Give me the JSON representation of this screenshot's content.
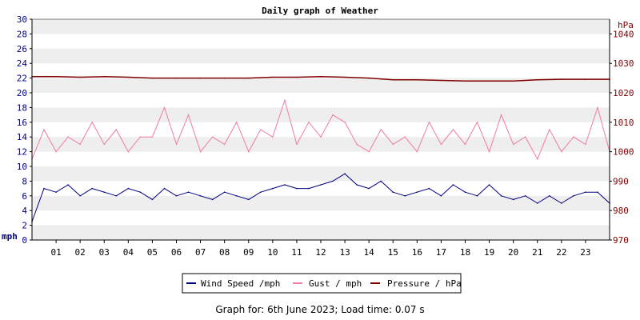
{
  "chart_data": {
    "type": "line",
    "title": "Daily graph of Weather",
    "ylabel_left": "mph",
    "ylabel_right": "hPa",
    "ylim_left": [
      0,
      30
    ],
    "yticks_left": [
      0,
      2,
      4,
      6,
      8,
      10,
      12,
      14,
      16,
      18,
      20,
      22,
      24,
      26,
      28,
      30
    ],
    "ylim_right": [
      970,
      1045
    ],
    "yticks_right": [
      970,
      980,
      990,
      1000,
      1010,
      1020,
      1030,
      1040
    ],
    "xlim": [
      0,
      24
    ],
    "x_tick_labels": [
      "01",
      "02",
      "03",
      "04",
      "05",
      "06",
      "07",
      "08",
      "09",
      "10",
      "11",
      "12",
      "13",
      "14",
      "15",
      "16",
      "17",
      "18",
      "19",
      "20",
      "21",
      "22",
      "23"
    ],
    "grid": "horizontal bands",
    "legend_position": "bottom",
    "colors": {
      "wind": "#000080",
      "gust": "#f07ba4",
      "pressure": "#800000",
      "left_axis_text": "#000080",
      "right_axis_text": "#800000",
      "band": "#eeeeee"
    },
    "series": [
      {
        "name": "Wind Speed /mph",
        "axis": "left",
        "color": "#000080",
        "x": [
          0.0,
          0.5,
          1.0,
          1.5,
          2.0,
          2.5,
          3.0,
          3.5,
          4.0,
          4.5,
          5.0,
          5.5,
          6.0,
          6.5,
          7.0,
          7.5,
          8.0,
          8.5,
          9.0,
          9.5,
          10.0,
          10.5,
          11.0,
          11.5,
          12.0,
          12.5,
          13.0,
          13.5,
          14.0,
          14.5,
          15.0,
          15.5,
          16.0,
          16.5,
          17.0,
          17.5,
          18.0,
          18.5,
          19.0,
          19.5,
          20.0,
          20.5,
          21.0,
          21.5,
          22.0,
          22.5,
          23.0,
          23.5,
          24.0
        ],
        "values": [
          2.5,
          7.0,
          6.5,
          7.5,
          6.0,
          7.0,
          6.5,
          6.0,
          7.0,
          6.5,
          5.5,
          7.0,
          6.0,
          6.5,
          6.0,
          5.5,
          6.5,
          6.0,
          5.5,
          6.5,
          7.0,
          7.5,
          7.0,
          7.0,
          7.5,
          8.0,
          9.0,
          7.5,
          7.0,
          8.0,
          6.5,
          6.0,
          6.5,
          7.0,
          6.0,
          7.5,
          6.5,
          6.0,
          7.5,
          6.0,
          5.5,
          6.0,
          5.0,
          6.0,
          5.0,
          6.0,
          6.5,
          6.5,
          5.0
        ]
      },
      {
        "name": "Gust / mph",
        "axis": "left",
        "color": "#f07ba4",
        "x": [
          0.0,
          0.5,
          1.0,
          1.5,
          2.0,
          2.5,
          3.0,
          3.5,
          4.0,
          4.5,
          5.0,
          5.5,
          6.0,
          6.5,
          7.0,
          7.5,
          8.0,
          8.5,
          9.0,
          9.5,
          10.0,
          10.5,
          11.0,
          11.5,
          12.0,
          12.5,
          13.0,
          13.5,
          14.0,
          14.5,
          15.0,
          15.5,
          16.0,
          16.5,
          17.0,
          17.5,
          18.0,
          18.5,
          19.0,
          19.5,
          20.0,
          20.5,
          21.0,
          21.5,
          22.0,
          22.5,
          23.0,
          23.5,
          24.0
        ],
        "values": [
          11,
          15,
          12,
          14,
          13,
          16,
          13,
          15,
          12,
          14,
          14,
          18,
          13,
          17,
          12,
          14,
          13,
          16,
          12,
          15,
          14,
          19,
          13,
          16,
          14,
          17,
          16,
          13,
          12,
          15,
          13,
          14,
          12,
          16,
          13,
          15,
          13,
          16,
          12,
          17,
          13,
          14,
          11,
          15,
          12,
          14,
          13,
          18,
          12
        ]
      },
      {
        "name": "Pressure / hPa",
        "axis": "right",
        "color": "#800000",
        "x": [
          0,
          1,
          2,
          3,
          4,
          5,
          6,
          7,
          8,
          9,
          10,
          11,
          12,
          13,
          14,
          15,
          16,
          17,
          18,
          19,
          20,
          21,
          22,
          23,
          24
        ],
        "values": [
          1025.5,
          1025.5,
          1025.3,
          1025.5,
          1025.3,
          1025.0,
          1025.0,
          1025.0,
          1025.0,
          1025.0,
          1025.3,
          1025.3,
          1025.5,
          1025.3,
          1025.0,
          1024.4,
          1024.4,
          1024.2,
          1024.0,
          1024.0,
          1024.0,
          1024.4,
          1024.6,
          1024.6,
          1024.6
        ]
      }
    ]
  },
  "footer": {
    "text": "Graph for: 6th June 2023; Load time: 0.07 s"
  }
}
